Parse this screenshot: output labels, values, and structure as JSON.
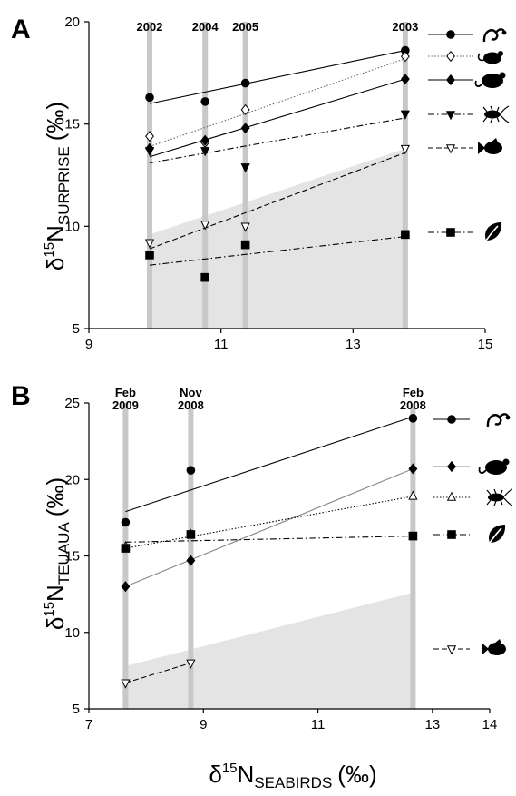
{
  "figure": {
    "shared_xlabel_main": "δ",
    "shared_xlabel_sup": "15",
    "shared_xlabel_rest": "N",
    "shared_xlabel_sub": "SEABIRDS",
    "shared_xlabel_unit": "(‰)"
  },
  "chart_data": [
    {
      "panel": "A",
      "type": "scatter",
      "xlim": [
        9,
        15
      ],
      "ylim": [
        5,
        20
      ],
      "xticks": [
        "9",
        "11",
        "13",
        "15"
      ],
      "yticks": [
        "5",
        "10",
        "15",
        "20"
      ],
      "ylabel_main": "δ",
      "ylabel_sup": "15",
      "ylabel_rest": "N",
      "ylabel_sub": "SURPRISE",
      "ylabel_unit": "(‰)",
      "bands": [
        {
          "label": "2002",
          "x": 9.92
        },
        {
          "label": "2004",
          "x": 10.76
        },
        {
          "label": "2005",
          "x": 11.37
        },
        {
          "label": "2003",
          "x": 13.79
        }
      ],
      "shaded_region": {
        "x": [
          9.92,
          13.79
        ],
        "y_top": [
          9.6,
          13.8
        ]
      },
      "series": [
        {
          "icon": "gecko-icon",
          "marker": "circle-filled",
          "line": "solid",
          "color": "#000000",
          "points": [
            [
              9.92,
              16.3
            ],
            [
              10.76,
              16.1
            ],
            [
              11.37,
              17.0
            ],
            [
              13.79,
              18.6
            ]
          ],
          "fit": [
            [
              9.92,
              16.0
            ],
            [
              13.79,
              18.6
            ]
          ]
        },
        {
          "icon": "mouse-icon",
          "marker": "diamond-open",
          "line": "dotted",
          "color": "#666666",
          "points": [
            [
              9.92,
              14.4
            ],
            [
              10.76,
              14.1
            ],
            [
              11.37,
              15.7
            ],
            [
              13.79,
              18.3
            ]
          ],
          "fit": [
            [
              9.92,
              13.9
            ],
            [
              13.79,
              18.2
            ]
          ]
        },
        {
          "icon": "rat-icon",
          "marker": "diamond-filled",
          "line": "solid",
          "color": "#000000",
          "points": [
            [
              9.92,
              13.8
            ],
            [
              10.76,
              14.2
            ],
            [
              11.37,
              14.8
            ],
            [
              13.79,
              17.2
            ]
          ],
          "fit": [
            [
              9.92,
              13.4
            ],
            [
              13.79,
              17.2
            ]
          ]
        },
        {
          "icon": "cockroach-icon",
          "marker": "triangle-down-filled",
          "line": "dashdot",
          "color": "#000000",
          "points": [
            [
              9.92,
              13.7
            ],
            [
              10.76,
              13.7
            ],
            [
              11.37,
              12.9
            ],
            [
              13.79,
              15.5
            ]
          ],
          "fit": [
            [
              9.92,
              13.1
            ],
            [
              13.79,
              15.3
            ]
          ]
        },
        {
          "icon": "fish-icon",
          "marker": "triangle-down-open",
          "line": "dashed",
          "color": "#000000",
          "points": [
            [
              9.92,
              9.2
            ],
            [
              10.76,
              10.1
            ],
            [
              11.37,
              10.0
            ],
            [
              13.79,
              13.8
            ]
          ],
          "fit": [
            [
              9.92,
              8.9
            ],
            [
              13.79,
              13.6
            ]
          ]
        },
        {
          "icon": "leaf-icon",
          "marker": "square-filled",
          "line": "dashdot",
          "color": "#000000",
          "points": [
            [
              9.92,
              8.6
            ],
            [
              10.76,
              7.5
            ],
            [
              11.37,
              9.1
            ],
            [
              13.79,
              9.6
            ]
          ],
          "fit": [
            [
              9.92,
              8.1
            ],
            [
              13.79,
              9.5
            ]
          ]
        }
      ]
    },
    {
      "panel": "B",
      "type": "scatter",
      "xlim": [
        7,
        14
      ],
      "ylim": [
        5,
        25
      ],
      "xticks": [
        "7",
        "9",
        "11",
        "13",
        "14"
      ],
      "yticks": [
        "5",
        "10",
        "15",
        "20",
        "25"
      ],
      "ylabel_main": "δ",
      "ylabel_sup": "15",
      "ylabel_rest": "N",
      "ylabel_sub": "TEUAUA",
      "ylabel_unit": "(‰)",
      "bands": [
        {
          "label": [
            "Feb",
            "2009"
          ],
          "x": 7.64
        },
        {
          "label": [
            "Nov",
            "2008"
          ],
          "x": 8.78
        },
        {
          "label": [
            "Feb",
            "2008"
          ],
          "x": 12.66
        }
      ],
      "shaded_region": {
        "x": [
          7.64,
          12.66
        ],
        "y_top": [
          7.8,
          12.6
        ]
      },
      "series": [
        {
          "icon": "gecko-icon",
          "marker": "circle-filled",
          "line": "solid",
          "color": "#000000",
          "points": [
            [
              7.64,
              17.2
            ],
            [
              8.78,
              20.6
            ],
            [
              12.66,
              24.0
            ]
          ],
          "fit": [
            [
              7.64,
              17.9
            ],
            [
              12.66,
              24.1
            ]
          ]
        },
        {
          "icon": "rat-icon",
          "marker": "diamond-filled",
          "line": "solid",
          "color": "#888888",
          "points": [
            [
              7.64,
              13.0
            ],
            [
              8.78,
              14.7
            ],
            [
              12.66,
              20.7
            ]
          ],
          "fit": [
            [
              7.64,
              13.0
            ],
            [
              12.66,
              20.7
            ]
          ]
        },
        {
          "icon": "cockroach-icon",
          "marker": "triangle-up-open",
          "line": "dotted",
          "color": "#000000",
          "points": [
            [
              7.64,
              15.6
            ],
            [
              8.78,
              16.4
            ],
            [
              12.66,
              18.9
            ]
          ],
          "fit": [
            [
              7.64,
              15.5
            ],
            [
              12.66,
              18.9
            ]
          ]
        },
        {
          "icon": "leaf-icon",
          "marker": "square-filled",
          "line": "dashdot",
          "color": "#000000",
          "points": [
            [
              7.64,
              15.5
            ],
            [
              8.78,
              16.4
            ],
            [
              12.66,
              16.3
            ]
          ],
          "fit": [
            [
              7.64,
              15.9
            ],
            [
              12.66,
              16.3
            ]
          ]
        },
        {
          "icon": "fish-icon",
          "marker": "triangle-down-open",
          "line": "dashed",
          "color": "#000000",
          "points": [
            [
              7.64,
              6.7
            ],
            [
              8.78,
              8.0
            ]
          ],
          "fit": [
            [
              7.64,
              6.7
            ],
            [
              8.78,
              8.0
            ]
          ]
        }
      ]
    }
  ]
}
